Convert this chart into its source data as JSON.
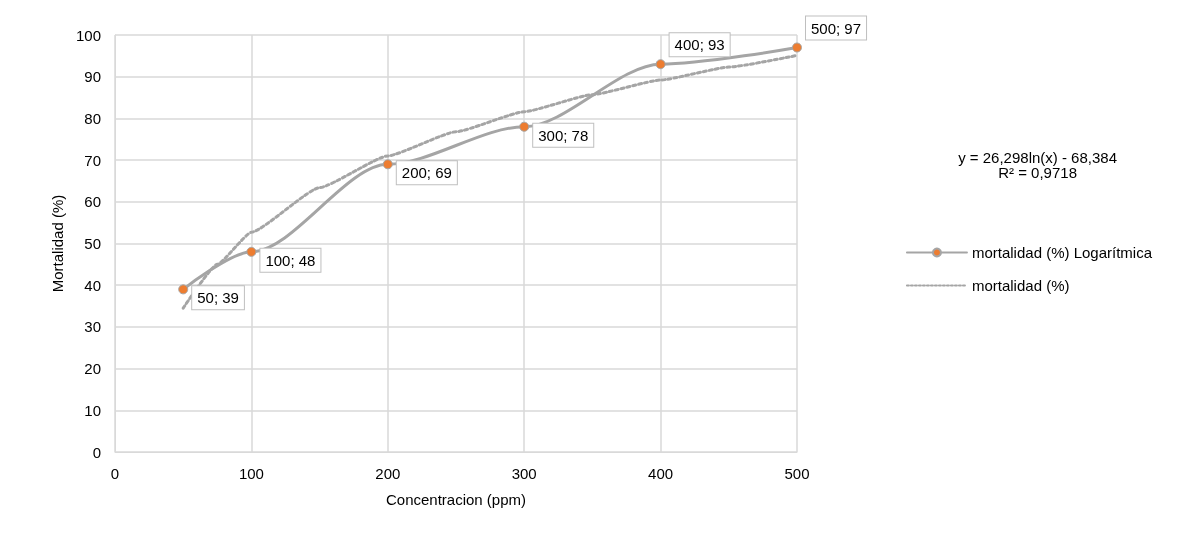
{
  "chart_data": {
    "type": "line",
    "xlabel": "Concentracion (ppm)",
    "ylabel": "Mortalidad (%)",
    "x": [
      50,
      100,
      200,
      300,
      400,
      500
    ],
    "series": [
      {
        "name": "mortalidad (%) Logarítmica",
        "color": "#a5a5a5",
        "colors": [
          "#ed7d31",
          "#ed7d31",
          "#ed7d31",
          "#ed7d31",
          "#ed7d31",
          "#ed7d31"
        ],
        "marker": "circle",
        "line_style": "solid",
        "values": [
          39,
          48,
          69,
          78,
          93,
          97
        ],
        "value_labels": [
          "50; 39",
          "100; 48",
          "200; 69",
          "300; 78",
          "400; 93",
          "500; 97"
        ]
      },
      {
        "name": "mortalidad (%)",
        "color": "#a5a5a5",
        "marker": "none",
        "line_style": "dotted",
        "x": [
          50,
          75,
          100,
          150,
          200,
          250,
          300,
          350,
          400,
          450,
          500
        ],
        "values": [
          34.5,
          45,
          52.7,
          63.4,
          71,
          76.8,
          81.6,
          85.7,
          89.2,
          92.3,
          95.1
        ]
      }
    ],
    "annotations": [
      "y = 26,298ln(x) - 68,384\nR² = 0,9718"
    ],
    "xlim": [
      0,
      500
    ],
    "xticks": [
      0,
      100,
      200,
      300,
      400,
      500
    ],
    "ylim": [
      0,
      100
    ],
    "yticks": [
      0,
      10,
      20,
      30,
      40,
      50,
      60,
      70,
      80,
      90,
      100
    ],
    "grid": true,
    "legend": "right"
  }
}
